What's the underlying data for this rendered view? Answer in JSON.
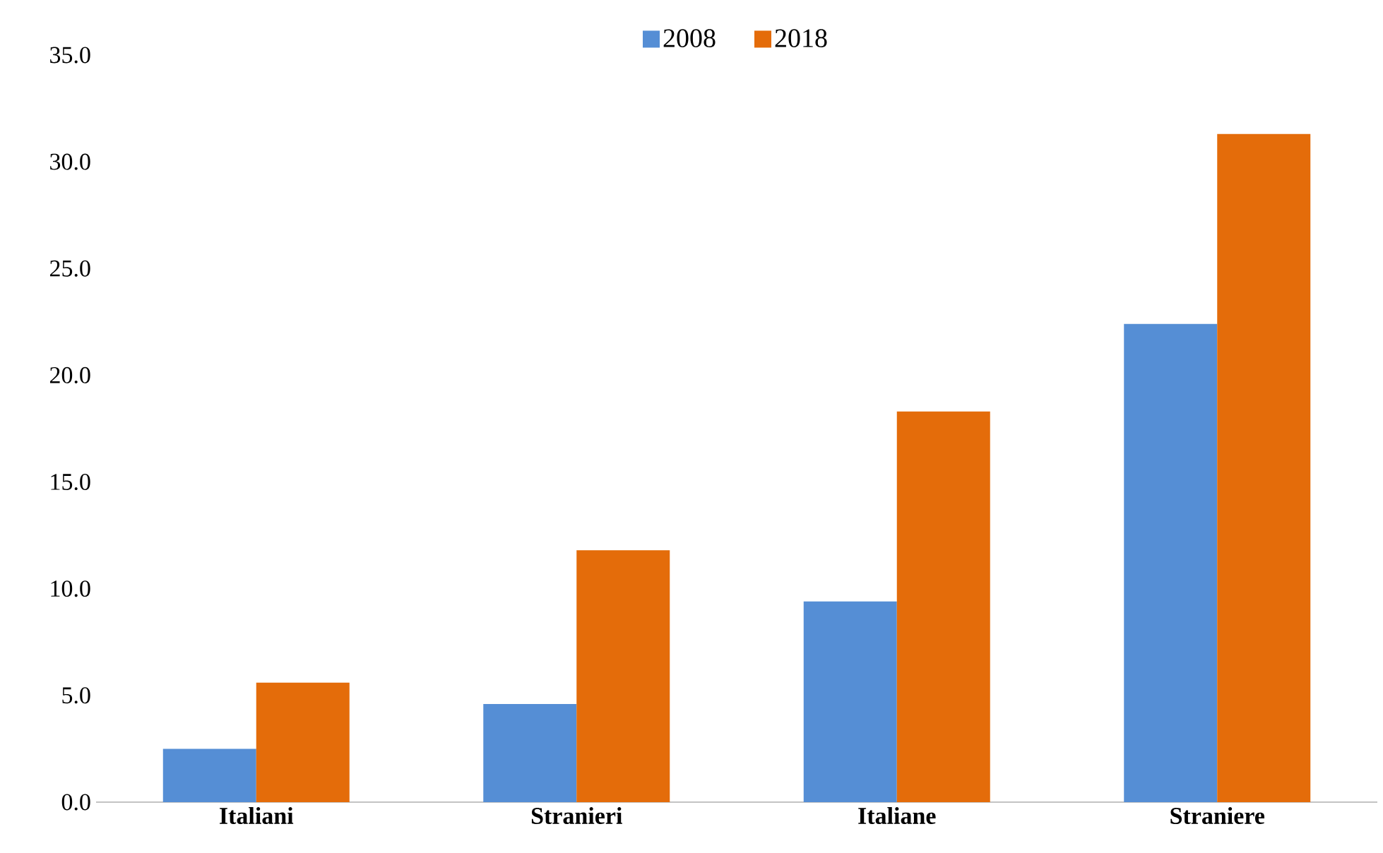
{
  "chart_data": {
    "type": "bar",
    "categories": [
      "Italiani",
      "Stranieri",
      "Italiane",
      "Straniere"
    ],
    "series": [
      {
        "name": "2008",
        "color": "#558ed5",
        "values": [
          2.5,
          4.6,
          9.4,
          22.4
        ]
      },
      {
        "name": "2018",
        "color": "#e46c0a",
        "values": [
          5.6,
          11.8,
          18.3,
          31.3
        ]
      }
    ],
    "ylim": [
      0,
      35
    ],
    "yticks": [
      {
        "value": 0,
        "label": "0.0"
      },
      {
        "value": 5,
        "label": "5.0"
      },
      {
        "value": 10,
        "label": "10.0"
      },
      {
        "value": 15,
        "label": "15.0"
      },
      {
        "value": 20,
        "label": "20.0"
      },
      {
        "value": 25,
        "label": "25.0"
      },
      {
        "value": 30,
        "label": "30.0"
      },
      {
        "value": 35,
        "label": "35.0"
      }
    ],
    "legend": "top",
    "grid": false
  }
}
